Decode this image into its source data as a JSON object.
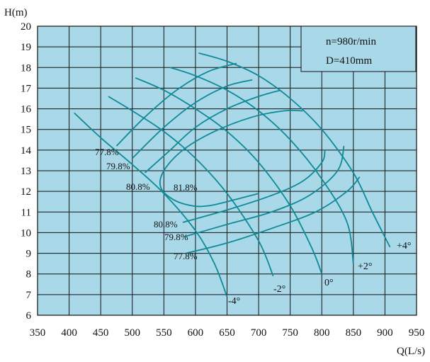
{
  "chart_data": {
    "type": "line",
    "ylabel": "H(m)",
    "xlabel": "Q(L/s)",
    "xlim": [
      350,
      950
    ],
    "ylim": [
      6,
      20
    ],
    "x_ticks": [
      "350",
      "400",
      "450",
      "500",
      "550",
      "600",
      "650",
      "700",
      "750",
      "800",
      "850",
      "900",
      "950"
    ],
    "y_ticks": [
      "6",
      "7",
      "8",
      "9",
      "10",
      "11",
      "12",
      "13",
      "14",
      "15",
      "16",
      "17",
      "18",
      "19",
      "20"
    ],
    "grid": true,
    "plot_background": "#a9d8e8",
    "curve_color": "#0f8a97",
    "annotation": {
      "line1": "n=980r/min",
      "line2": "D=410mm"
    },
    "head_curves": [
      {
        "name": "-4°",
        "points": [
          [
            408,
            15.8
          ],
          [
            450,
            14.6
          ],
          [
            500,
            13.3
          ],
          [
            550,
            11.9
          ],
          [
            600,
            10.1
          ],
          [
            630,
            8.5
          ],
          [
            650,
            6.9
          ]
        ]
      },
      {
        "name": "-2°",
        "points": [
          [
            462,
            16.6
          ],
          [
            500,
            15.9
          ],
          [
            550,
            14.9
          ],
          [
            600,
            13.6
          ],
          [
            650,
            11.9
          ],
          [
            700,
            9.6
          ],
          [
            723,
            7.9
          ]
        ]
      },
      {
        "name": "0°",
        "points": [
          [
            505,
            17.5
          ],
          [
            550,
            16.9
          ],
          [
            600,
            16.0
          ],
          [
            650,
            14.9
          ],
          [
            700,
            13.4
          ],
          [
            750,
            11.3
          ],
          [
            785,
            9.2
          ],
          [
            800,
            8.0
          ]
        ]
      },
      {
        "name": "+2°",
        "points": [
          [
            560,
            18.0
          ],
          [
            600,
            17.6
          ],
          [
            650,
            16.9
          ],
          [
            700,
            15.9
          ],
          [
            750,
            14.5
          ],
          [
            800,
            12.6
          ],
          [
            840,
            10.5
          ],
          [
            850,
            8.5
          ]
        ]
      },
      {
        "name": "+4°",
        "points": [
          [
            605,
            18.7
          ],
          [
            650,
            18.3
          ],
          [
            700,
            17.6
          ],
          [
            750,
            16.5
          ],
          [
            800,
            15.0
          ],
          [
            850,
            12.9
          ],
          [
            880,
            11.0
          ],
          [
            908,
            9.3
          ]
        ]
      }
    ],
    "efficiency_curves": [
      {
        "name": "77.8%",
        "points": [
          [
            475,
            14.2
          ],
          [
            520,
            15.6
          ],
          [
            570,
            16.9
          ],
          [
            620,
            17.8
          ],
          [
            665,
            18.2
          ]
        ]
      },
      {
        "name": "79.8%",
        "points": [
          [
            500,
            13.6
          ],
          [
            550,
            15.1
          ],
          [
            600,
            16.3
          ],
          [
            650,
            17.1
          ],
          [
            690,
            17.4
          ]
        ]
      },
      {
        "name": "80.8%",
        "points": [
          [
            520,
            12.9
          ],
          [
            560,
            14.0
          ],
          [
            600,
            15.1
          ],
          [
            650,
            16.0
          ],
          [
            700,
            16.6
          ],
          [
            735,
            16.9
          ]
        ]
      },
      {
        "name": "81.8%",
        "points": [
          [
            700,
            11.9
          ],
          [
            650,
            11.5
          ],
          [
            620,
            11.3
          ],
          [
            595,
            11.3
          ],
          [
            565,
            11.6
          ],
          [
            545,
            12.2
          ],
          [
            550,
            13.0
          ],
          [
            580,
            14.0
          ],
          [
            630,
            14.9
          ],
          [
            690,
            15.6
          ],
          [
            740,
            15.9
          ],
          [
            770,
            15.9
          ]
        ]
      },
      {
        "name": "80.8%",
        "points": [
          [
            580,
            10.5
          ],
          [
            650,
            11.1
          ],
          [
            720,
            11.8
          ],
          [
            770,
            12.5
          ],
          [
            800,
            13.4
          ],
          [
            805,
            14.0
          ]
        ]
      },
      {
        "name": "79.8%",
        "points": [
          [
            582,
            9.8
          ],
          [
            650,
            10.4
          ],
          [
            720,
            11.0
          ],
          [
            780,
            11.8
          ],
          [
            825,
            13.0
          ],
          [
            835,
            14.2
          ]
        ]
      },
      {
        "name": "77.8%",
        "points": [
          [
            585,
            9.0
          ],
          [
            650,
            9.5
          ],
          [
            720,
            10.2
          ],
          [
            790,
            11.0
          ],
          [
            840,
            12.0
          ],
          [
            860,
            12.7
          ]
        ]
      }
    ],
    "head_labels": [
      "-4°",
      "-2°",
      "0°",
      "+2°",
      "+4°"
    ],
    "efficiency_labels": [
      "77.8%",
      "79.8%",
      "80.8%",
      "81.8%",
      "80.8%",
      "79.8%",
      "77.8%"
    ]
  }
}
